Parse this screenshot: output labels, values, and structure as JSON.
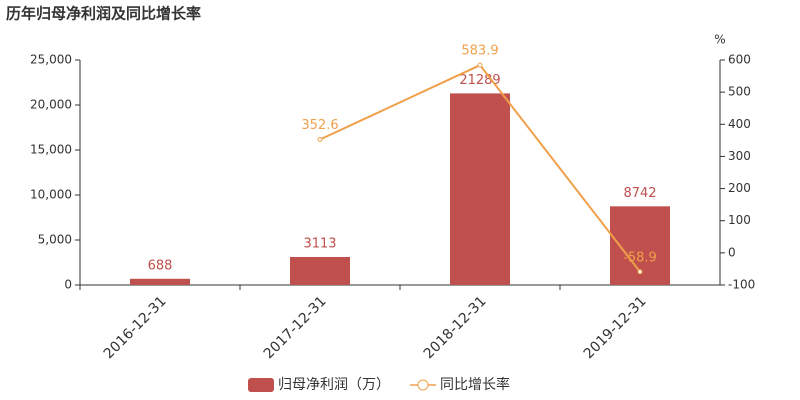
{
  "chart_data": {
    "type": "bar",
    "title": "历年归母净利润及同比增长率",
    "y2label": "%",
    "categories": [
      "2016-12-31",
      "2017-12-31",
      "2018-12-31",
      "2019-12-31"
    ],
    "series": [
      {
        "name": "归母净利润（万）",
        "type": "bar",
        "color": "#c0504d",
        "values": [
          688,
          3113,
          21289,
          8742
        ]
      },
      {
        "name": "同比增长率",
        "type": "line",
        "color": "#f0a04b",
        "axis": "y2",
        "values": [
          null,
          352.6,
          583.9,
          -58.9
        ]
      }
    ],
    "ylim": [
      0,
      25000
    ],
    "yticks": [
      0,
      {
        "value": 5000,
        "label": "5,000"
      },
      {
        "value": 10000,
        "label": "10,000"
      },
      {
        "value": 15000,
        "label": "15,000"
      },
      {
        "value": 20000,
        "label": "20,000"
      },
      {
        "value": 25000,
        "label": "25,000"
      }
    ],
    "y2lim": [
      -100,
      600
    ],
    "y2ticks": [
      -100,
      0,
      100,
      200,
      300,
      400,
      500,
      600
    ]
  }
}
